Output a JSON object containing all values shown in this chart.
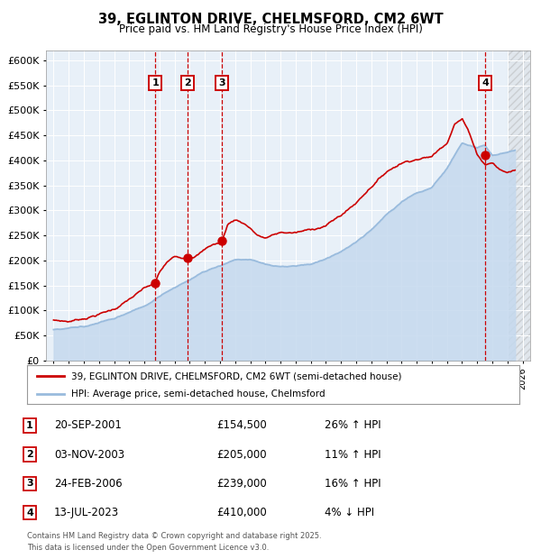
{
  "title": "39, EGLINTON DRIVE, CHELMSFORD, CM2 6WT",
  "subtitle": "Price paid vs. HM Land Registry's House Price Index (HPI)",
  "legend_line1": "39, EGLINTON DRIVE, CHELMSFORD, CM2 6WT (semi-detached house)",
  "legend_line2": "HPI: Average price, semi-detached house, Chelmsford",
  "footer1": "Contains HM Land Registry data © Crown copyright and database right 2025.",
  "footer2": "This data is licensed under the Open Government Licence v3.0.",
  "red_color": "#cc0000",
  "blue_color": "#99bbdd",
  "blue_fill": "#c5d9ee",
  "plot_bg": "#e8f0f8",
  "ylim": [
    0,
    620000
  ],
  "yticks": [
    0,
    50000,
    100000,
    150000,
    200000,
    250000,
    300000,
    350000,
    400000,
    450000,
    500000,
    550000,
    600000
  ],
  "sale_events": [
    {
      "num": 1,
      "date": "20-SEP-2001",
      "price": 154500,
      "pct": "26%",
      "dir": "↑",
      "x_year": 2001.72
    },
    {
      "num": 2,
      "date": "03-NOV-2003",
      "price": 205000,
      "pct": "11%",
      "dir": "↑",
      "x_year": 2003.84
    },
    {
      "num": 3,
      "date": "24-FEB-2006",
      "price": 239000,
      "pct": "16%",
      "dir": "↑",
      "x_year": 2006.12
    },
    {
      "num": 4,
      "date": "13-JUL-2023",
      "price": 410000,
      "pct": "4%",
      "dir": "↓",
      "x_year": 2023.53
    }
  ],
  "xlim_start": 1994.5,
  "xlim_end": 2026.5,
  "hatch_start": 2025.0
}
